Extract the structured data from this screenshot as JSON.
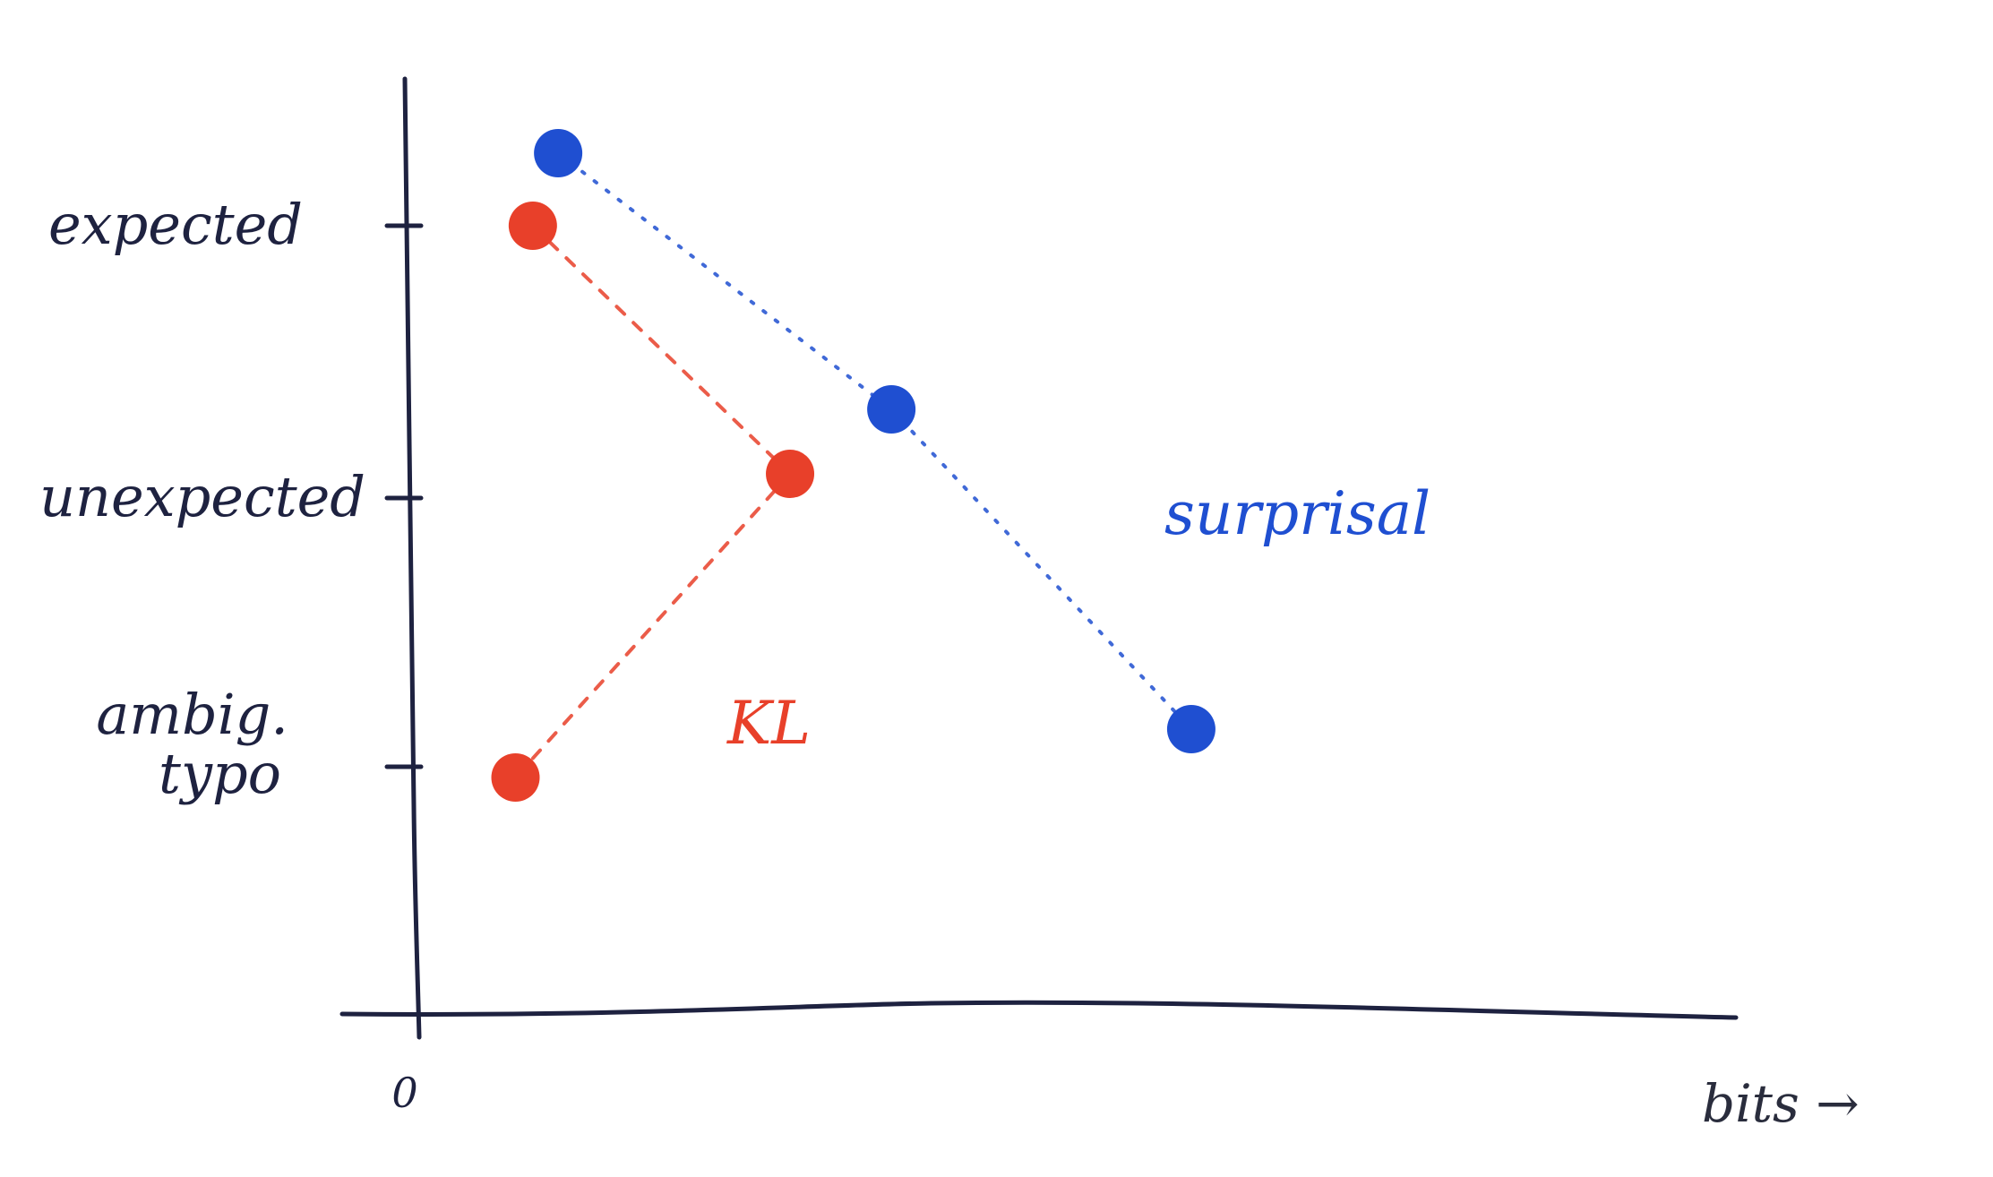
{
  "chart_data": {
    "type": "scatter",
    "title": "",
    "xlabel": "bits →",
    "ylabel": "",
    "x_tick_labels": [
      "0"
    ],
    "y_categories": [
      {
        "label": "expected",
        "lines": [
          "expected"
        ]
      },
      {
        "label": "unexpected",
        "lines": [
          "unexpected"
        ]
      },
      {
        "label": "ambig. typo",
        "lines": [
          "ambig.",
          "typo"
        ]
      }
    ],
    "axis_units": "arbitrary (hand-drawn schematic)",
    "xlim": [
      0,
      100
    ],
    "grid": false,
    "legend": "none (series labelled directly on the plot)",
    "series": [
      {
        "name": "surprisal",
        "color": "#1f4fd1",
        "line_style": "dotted",
        "points": [
          {
            "category": "expected",
            "x": 11.5,
            "y_offset": 0.27
          },
          {
            "category": "unexpected",
            "x": 36.5,
            "y_offset": 0.33
          },
          {
            "category": "ambig. typo",
            "x": 59,
            "y_offset": 0.14
          }
        ]
      },
      {
        "name": "KL",
        "color": "#e8402a",
        "line_style": "dashed",
        "points": [
          {
            "category": "expected",
            "x": 9.6,
            "y_offset": 0.0
          },
          {
            "category": "unexpected",
            "x": 28.9,
            "y_offset": 0.09
          },
          {
            "category": "ambig. typo",
            "x": 8.3,
            "y_offset": -0.04
          }
        ]
      }
    ],
    "colors": {
      "axis": "#1e2240",
      "text": "#1e2240",
      "background": "#ffffff"
    }
  }
}
